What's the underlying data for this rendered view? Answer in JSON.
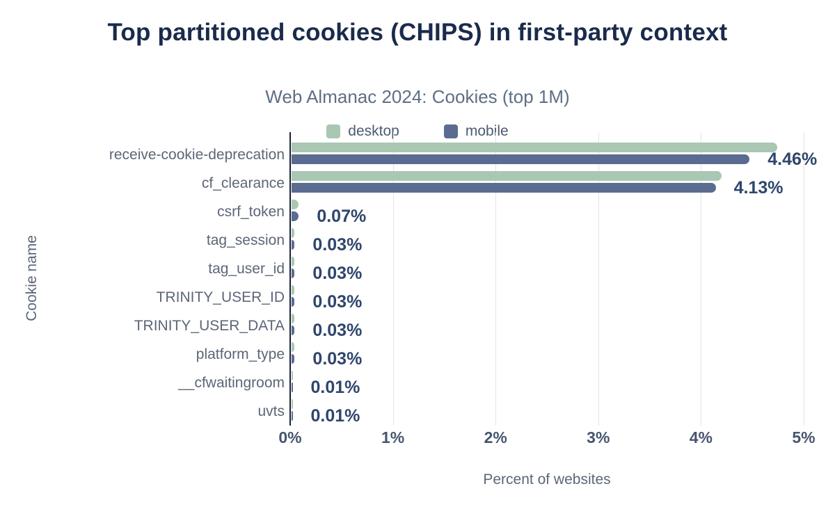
{
  "chart_data": {
    "type": "bar",
    "orientation": "horizontal",
    "title": "Top partitioned cookies (CHIPS) in first-party context",
    "subtitle": "Web Almanac 2024: Cookies (top 1M)",
    "xlabel": "Percent of websites",
    "ylabel": "Cookie name",
    "xlim": [
      0,
      5
    ],
    "x_ticks": [
      "0%",
      "1%",
      "2%",
      "3%",
      "4%",
      "5%"
    ],
    "grid": true,
    "legend_position": "top",
    "categories": [
      "receive-cookie-deprecation",
      "cf_clearance",
      "csrf_token",
      "tag_session",
      "tag_user_id",
      "TRINITY_USER_ID",
      "TRINITY_USER_DATA",
      "platform_type",
      "__cfwaitingroom",
      "uvts"
    ],
    "series": [
      {
        "name": "desktop",
        "color": "#a9c7b2",
        "values": [
          4.73,
          4.19,
          0.07,
          0.03,
          0.03,
          0.03,
          0.03,
          0.03,
          0.01,
          0.01
        ]
      },
      {
        "name": "mobile",
        "color": "#5a6c90",
        "values": [
          4.46,
          4.13,
          0.07,
          0.03,
          0.03,
          0.03,
          0.03,
          0.03,
          0.01,
          0.01
        ]
      }
    ],
    "value_labels": [
      "4.46%",
      "4.13%",
      "0.07%",
      "0.03%",
      "0.03%",
      "0.03%",
      "0.03%",
      "0.03%",
      "0.01%",
      "0.01%"
    ]
  },
  "colors": {
    "title": "#1a2b4c",
    "subtitle": "#5f6e86",
    "axis_text": "#47556e",
    "category_text": "#5c6677",
    "value_label": "#2f456b",
    "gridline": "#e3e4e8",
    "axis_line": "#1a2233",
    "background": "#ffffff",
    "desktop": "#a9c7b2",
    "mobile": "#5a6c90"
  }
}
